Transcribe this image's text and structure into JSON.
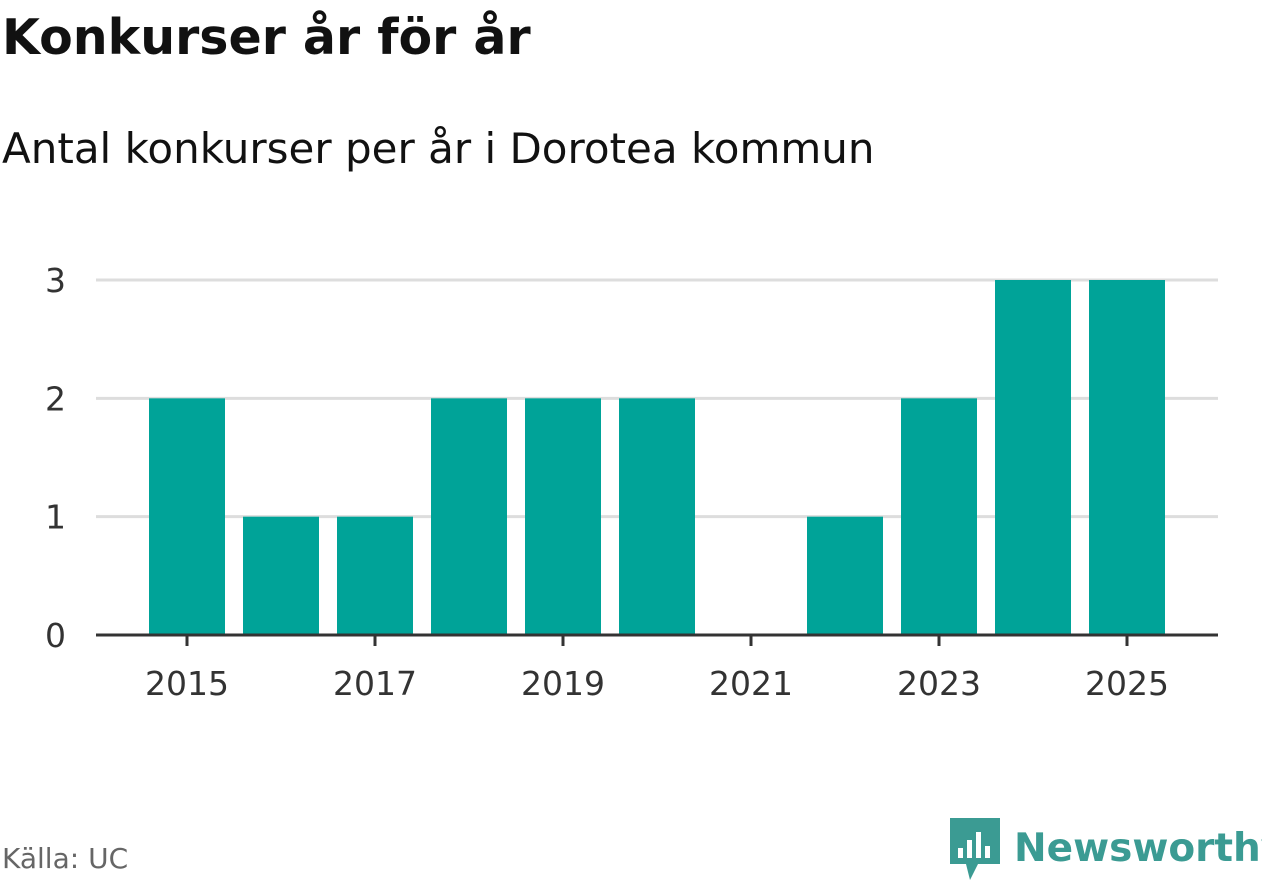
{
  "header": {
    "title": "Konkurser år för år",
    "subtitle": "Antal konkurser per år i Dorotea kommun"
  },
  "chart_data": {
    "type": "bar",
    "title": "Konkurser år för år",
    "subtitle": "Antal konkurser per år i Dorotea kommun",
    "xlabel": "",
    "ylabel": "",
    "categories": [
      "2015",
      "2016",
      "2017",
      "2018",
      "2019",
      "2020",
      "2021",
      "2022",
      "2023",
      "2024",
      "2025"
    ],
    "values": [
      2,
      1,
      1,
      2,
      2,
      2,
      0,
      1,
      2,
      3,
      3
    ],
    "x_tick_labels": [
      "2015",
      "2017",
      "2019",
      "2021",
      "2023",
      "2025"
    ],
    "y_tick_labels": [
      "0",
      "1",
      "2",
      "3"
    ],
    "ylim": [
      0,
      3
    ],
    "grid": true,
    "legend": "none",
    "bar_color": "#00a398"
  },
  "footer": {
    "source": "Källa: UC",
    "brand": "Newsworthy",
    "brand_color": "#3b9b93"
  }
}
